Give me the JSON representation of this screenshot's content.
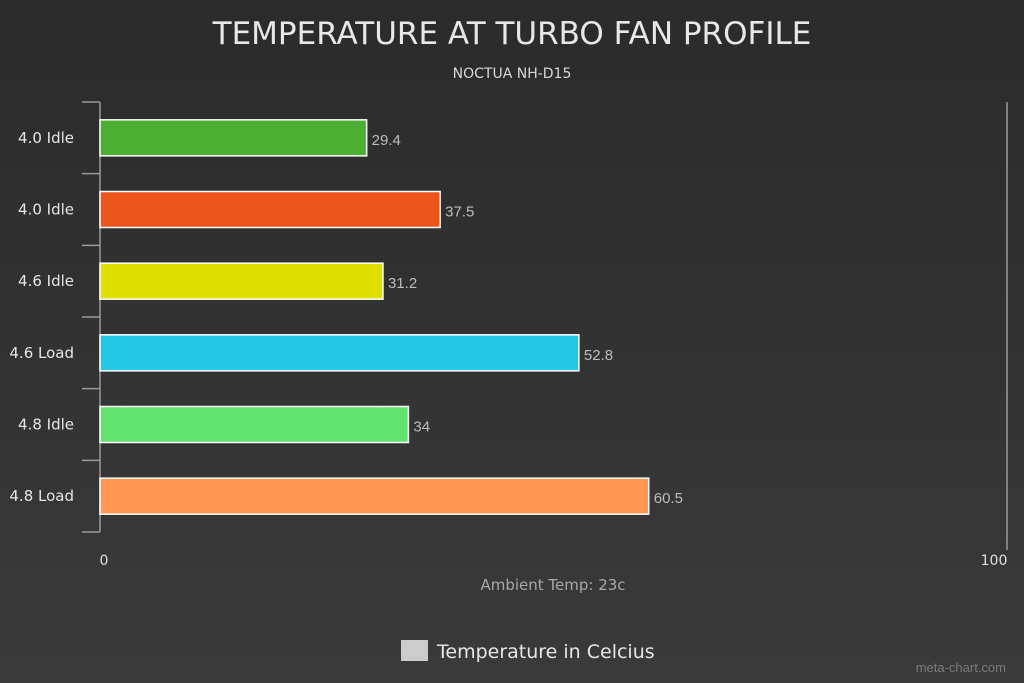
{
  "chart_data": {
    "type": "bar",
    "orientation": "horizontal",
    "title": "TEMPERATURE AT TURBO FAN PROFILE",
    "subtitle": "NOCTUA NH-D15",
    "categories": [
      "4.0 Idle",
      "4.0 Idle",
      "4.6 Idle",
      "4.6 Load",
      "4.8 Idle",
      "4.8 Load"
    ],
    "series": [
      {
        "name": "Temperature in Celcius",
        "values": [
          29.4,
          37.5,
          31.2,
          52.8,
          34,
          60.5
        ],
        "value_labels": [
          "29.4",
          "37.5",
          "31.2",
          "52.8",
          "34",
          "60.5"
        ],
        "colors": [
          "#4caf34",
          "#ec561d",
          "#dfe000",
          "#25c8e4",
          "#62e26e",
          "#ff9752"
        ]
      }
    ],
    "xlim": [
      0,
      100
    ],
    "x_tick_labels": [
      "0",
      "100"
    ],
    "xlabel": "Ambient Temp: 23c",
    "ylabel": "",
    "grid": false,
    "legend_position": "bottom-center",
    "legend_swatch_color": "#cccccc"
  },
  "watermark": "meta-chart.com"
}
